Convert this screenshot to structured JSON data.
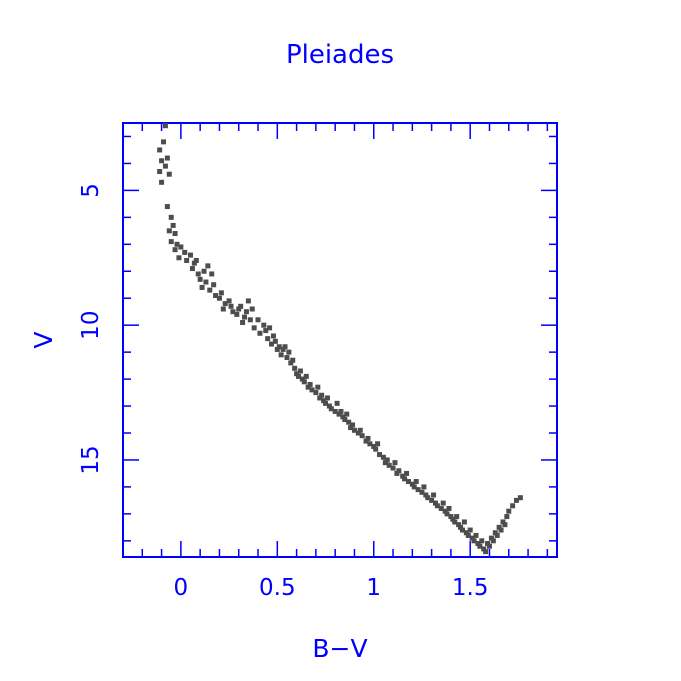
{
  "colors": {
    "axes": "#0000ff",
    "text": "#0000ff",
    "points": "#4d4d4d",
    "background": "#ffffff"
  },
  "chart_data": {
    "type": "scatter",
    "title": "Pleiades",
    "xlabel": "B−V",
    "ylabel": "V",
    "xlim": [
      -0.3,
      1.95
    ],
    "ylim": [
      2.5,
      18.6
    ],
    "y_inverted": true,
    "grid": false,
    "legend": "none",
    "x_ticks": [
      0,
      0.5,
      1,
      1.5
    ],
    "x_tick_labels": [
      "0",
      "0.5",
      "1",
      "1.5"
    ],
    "y_ticks": [
      5,
      10,
      15
    ],
    "y_tick_labels": [
      "5",
      "10",
      "15"
    ],
    "x_minor_step": 0.1,
    "y_minor_step": 1,
    "series": [
      {
        "points": [
          [
            -0.08,
            2.6
          ],
          [
            -0.09,
            3.2
          ],
          [
            -0.11,
            3.5
          ],
          [
            -0.1,
            3.9
          ],
          [
            -0.07,
            3.8
          ],
          [
            -0.11,
            4.3
          ],
          [
            -0.08,
            4.1
          ],
          [
            -0.1,
            4.7
          ],
          [
            -0.06,
            4.4
          ],
          [
            -0.07,
            5.6
          ],
          [
            -0.05,
            6.0
          ],
          [
            -0.04,
            6.3
          ],
          [
            -0.06,
            6.5
          ],
          [
            -0.03,
            6.6
          ],
          [
            -0.02,
            7.0
          ],
          [
            -0.05,
            6.9
          ],
          [
            -0.03,
            7.2
          ],
          [
            -0.01,
            7.5
          ],
          [
            0.0,
            7.1
          ],
          [
            0.02,
            7.3
          ],
          [
            0.03,
            7.6
          ],
          [
            0.05,
            7.4
          ],
          [
            0.07,
            7.7
          ],
          [
            0.06,
            7.9
          ],
          [
            0.09,
            8.1
          ],
          [
            0.08,
            7.6
          ],
          [
            0.1,
            8.3
          ],
          [
            0.12,
            8.0
          ],
          [
            0.11,
            8.6
          ],
          [
            0.13,
            8.4
          ],
          [
            0.14,
            7.8
          ],
          [
            0.15,
            8.7
          ],
          [
            0.17,
            8.5
          ],
          [
            0.18,
            8.9
          ],
          [
            0.16,
            8.1
          ],
          [
            0.2,
            9.0
          ],
          [
            0.21,
            8.8
          ],
          [
            0.23,
            9.2
          ],
          [
            0.22,
            9.4
          ],
          [
            0.25,
            9.1
          ],
          [
            0.27,
            9.5
          ],
          [
            0.26,
            9.3
          ],
          [
            0.29,
            9.6
          ],
          [
            0.3,
            9.4
          ],
          [
            0.31,
            9.3
          ],
          [
            0.33,
            9.7
          ],
          [
            0.32,
            9.9
          ],
          [
            0.34,
            9.5
          ],
          [
            0.35,
            9.1
          ],
          [
            0.36,
            9.8
          ],
          [
            0.37,
            9.4
          ],
          [
            0.38,
            10.1
          ],
          [
            0.4,
            9.8
          ],
          [
            0.41,
            10.3
          ],
          [
            0.43,
            10.0
          ],
          [
            0.44,
            10.2
          ],
          [
            0.45,
            10.5
          ],
          [
            0.46,
            10.1
          ],
          [
            0.48,
            10.4
          ],
          [
            0.47,
            10.7
          ],
          [
            0.49,
            10.6
          ],
          [
            0.5,
            10.9
          ],
          [
            0.51,
            10.8
          ],
          [
            0.52,
            11.1
          ],
          [
            0.53,
            10.9
          ],
          [
            0.54,
            10.8
          ],
          [
            0.55,
            11.2
          ],
          [
            0.56,
            11.0
          ],
          [
            0.57,
            11.4
          ],
          [
            0.58,
            11.3
          ],
          [
            0.59,
            11.6
          ],
          [
            0.6,
            11.8
          ],
          [
            0.61,
            11.9
          ],
          [
            0.62,
            11.7
          ],
          [
            0.63,
            12.0
          ],
          [
            0.64,
            12.1
          ],
          [
            0.65,
            11.9
          ],
          [
            0.66,
            12.3
          ],
          [
            0.67,
            12.2
          ],
          [
            0.68,
            12.4
          ],
          [
            0.7,
            12.5
          ],
          [
            0.71,
            12.3
          ],
          [
            0.72,
            12.7
          ],
          [
            0.73,
            12.6
          ],
          [
            0.74,
            12.8
          ],
          [
            0.75,
            12.9
          ],
          [
            0.76,
            12.7
          ],
          [
            0.77,
            13.0
          ],
          [
            0.78,
            13.1
          ],
          [
            0.8,
            13.2
          ],
          [
            0.81,
            12.9
          ],
          [
            0.82,
            13.3
          ],
          [
            0.83,
            13.2
          ],
          [
            0.84,
            13.4
          ],
          [
            0.85,
            13.5
          ],
          [
            0.86,
            13.3
          ],
          [
            0.87,
            13.6
          ],
          [
            0.88,
            13.8
          ],
          [
            0.89,
            13.7
          ],
          [
            0.9,
            13.9
          ],
          [
            0.92,
            14.0
          ],
          [
            0.93,
            13.9
          ],
          [
            0.94,
            14.1
          ],
          [
            0.96,
            14.3
          ],
          [
            0.97,
            14.2
          ],
          [
            0.98,
            14.4
          ],
          [
            1.0,
            14.5
          ],
          [
            1.01,
            14.6
          ],
          [
            1.02,
            14.4
          ],
          [
            1.03,
            14.8
          ],
          [
            1.05,
            14.9
          ],
          [
            1.06,
            15.1
          ],
          [
            1.07,
            15.0
          ],
          [
            1.08,
            15.2
          ],
          [
            1.1,
            15.3
          ],
          [
            1.11,
            15.1
          ],
          [
            1.12,
            15.5
          ],
          [
            1.13,
            15.4
          ],
          [
            1.15,
            15.6
          ],
          [
            1.16,
            15.7
          ],
          [
            1.17,
            15.5
          ],
          [
            1.18,
            15.8
          ],
          [
            1.2,
            15.9
          ],
          [
            1.21,
            16.0
          ],
          [
            1.22,
            15.8
          ],
          [
            1.23,
            16.1
          ],
          [
            1.25,
            16.2
          ],
          [
            1.26,
            16.0
          ],
          [
            1.27,
            16.3
          ],
          [
            1.28,
            16.4
          ],
          [
            1.3,
            16.5
          ],
          [
            1.31,
            16.3
          ],
          [
            1.32,
            16.6
          ],
          [
            1.33,
            16.7
          ],
          [
            1.35,
            16.8
          ],
          [
            1.36,
            16.6
          ],
          [
            1.37,
            16.9
          ],
          [
            1.38,
            17.0
          ],
          [
            1.39,
            16.8
          ],
          [
            1.4,
            17.1
          ],
          [
            1.41,
            17.2
          ],
          [
            1.42,
            17.3
          ],
          [
            1.43,
            17.1
          ],
          [
            1.44,
            17.4
          ],
          [
            1.45,
            17.5
          ],
          [
            1.46,
            17.6
          ],
          [
            1.47,
            17.3
          ],
          [
            1.48,
            17.7
          ],
          [
            1.49,
            17.8
          ],
          [
            1.5,
            17.6
          ],
          [
            1.51,
            17.9
          ],
          [
            1.52,
            18.0
          ],
          [
            1.53,
            17.8
          ],
          [
            1.54,
            18.1
          ],
          [
            1.55,
            18.2
          ],
          [
            1.56,
            18.0
          ],
          [
            1.57,
            18.3
          ],
          [
            1.58,
            18.4
          ],
          [
            1.59,
            18.1
          ],
          [
            1.6,
            18.2
          ],
          [
            1.61,
            17.9
          ],
          [
            1.62,
            18.0
          ],
          [
            1.63,
            17.7
          ],
          [
            1.64,
            17.8
          ],
          [
            1.65,
            17.5
          ],
          [
            1.66,
            17.6
          ],
          [
            1.67,
            17.3
          ],
          [
            1.68,
            17.4
          ],
          [
            1.69,
            17.1
          ],
          [
            1.7,
            16.9
          ],
          [
            1.72,
            16.7
          ],
          [
            1.74,
            16.5
          ],
          [
            1.76,
            16.4
          ]
        ]
      }
    ]
  }
}
